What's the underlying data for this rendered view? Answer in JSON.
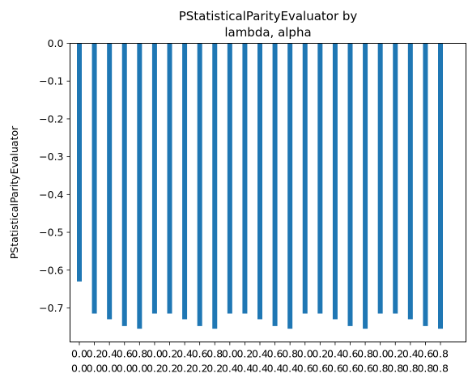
{
  "chart_data": {
    "type": "bar",
    "title_lines": [
      "PStatisticalParityEvaluator by",
      "lambda, alpha"
    ],
    "xlabel": "",
    "ylabel": "PStatisticalParityEvaluator",
    "ylim": [
      -0.79,
      0.0
    ],
    "yticks": [
      0.0,
      -0.1,
      -0.2,
      -0.3,
      -0.4,
      -0.5,
      -0.6,
      -0.7
    ],
    "ytick_labels": [
      "0.0",
      "−0.1",
      "−0.2",
      "−0.3",
      "−0.4",
      "−0.5",
      "−0.6",
      "−0.7"
    ],
    "categories": [
      [
        "0.0",
        "0.0"
      ],
      [
        "0.2",
        "0.0"
      ],
      [
        "0.4",
        "0.0"
      ],
      [
        "0.6",
        "0.0"
      ],
      [
        "0.8",
        "0.0"
      ],
      [
        "0.0",
        "0.2"
      ],
      [
        "0.2",
        "0.2"
      ],
      [
        "0.4",
        "0.2"
      ],
      [
        "0.6",
        "0.2"
      ],
      [
        "0.8",
        "0.2"
      ],
      [
        "0.0",
        "0.4"
      ],
      [
        "0.2",
        "0.4"
      ],
      [
        "0.4",
        "0.4"
      ],
      [
        "0.6",
        "0.4"
      ],
      [
        "0.8",
        "0.4"
      ],
      [
        "0.0",
        "0.6"
      ],
      [
        "0.2",
        "0.6"
      ],
      [
        "0.4",
        "0.6"
      ],
      [
        "0.6",
        "0.6"
      ],
      [
        "0.8",
        "0.6"
      ],
      [
        "0.0",
        "0.8"
      ],
      [
        "0.2",
        "0.8"
      ],
      [
        "0.4",
        "0.8"
      ],
      [
        "0.6",
        "0.8"
      ],
      [
        "0.8",
        "0.8"
      ]
    ],
    "values": [
      -0.63,
      -0.715,
      -0.73,
      -0.748,
      -0.755,
      -0.715,
      -0.715,
      -0.73,
      -0.748,
      -0.755,
      -0.715,
      -0.715,
      -0.73,
      -0.748,
      -0.755,
      -0.715,
      -0.715,
      -0.73,
      -0.748,
      -0.755,
      -0.715,
      -0.715,
      -0.73,
      -0.748,
      -0.755
    ],
    "bar_color": "#1f77b4",
    "grid": false,
    "legend": "none"
  }
}
